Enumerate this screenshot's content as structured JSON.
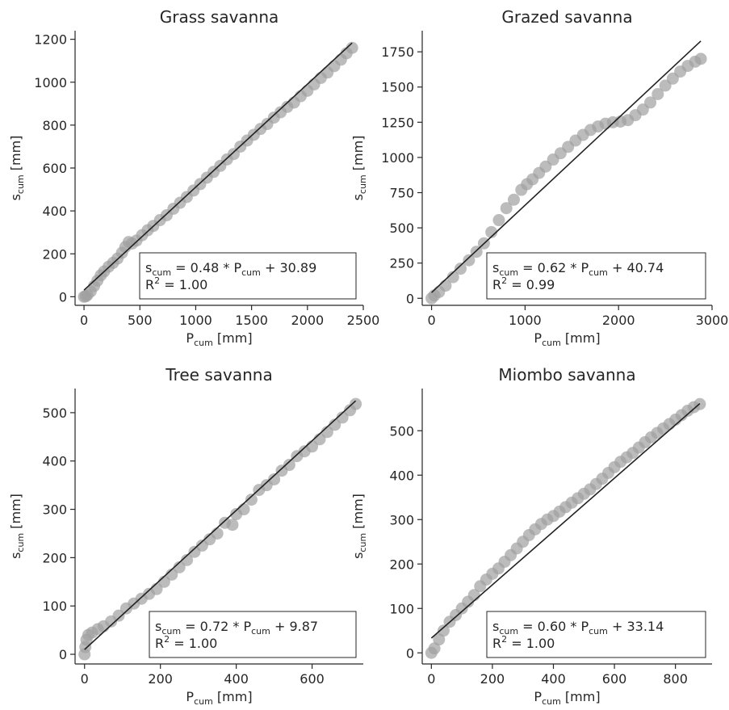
{
  "chart_data": [
    {
      "type": "scatter",
      "title": "Grass savanna",
      "xlabel": {
        "main": "P",
        "sub": "cum",
        "rest": " [mm]"
      },
      "ylabel": {
        "main": "s",
        "sub": "cum",
        "rest": " [mm]"
      },
      "xlim": [
        -80,
        2500
      ],
      "ylim": [
        -40,
        1240
      ],
      "xticks": [
        0,
        500,
        1000,
        1500,
        2000,
        2500
      ],
      "yticks": [
        0,
        200,
        400,
        600,
        800,
        1000,
        1200
      ],
      "equation": {
        "lhs": "s",
        "lhs_sub": "cum",
        "mid": " = 0.48 * P",
        "mid_sub": "cum",
        "rhs": " + 30.89",
        "r2_label": "R",
        "r2_sup": "2",
        "r2_value": " = 1.00"
      },
      "fit": {
        "slope": 0.48,
        "intercept": 30.89,
        "x_range": [
          0,
          2400
        ]
      },
      "series": [
        {
          "x": [
            0,
            15,
            30,
            60,
            90,
            120,
            150,
            180,
            220,
            260,
            300,
            340,
            370,
            400,
            430,
            470,
            520,
            570,
            620,
            680,
            740,
            800,
            860,
            920,
            980,
            1040,
            1100,
            1160,
            1220,
            1280,
            1340,
            1400,
            1460,
            1520,
            1580,
            1640,
            1700,
            1760,
            1820,
            1880,
            1940,
            2000,
            2060,
            2120,
            2180,
            2240,
            2300,
            2350,
            2400
          ],
          "y": [
            0,
            2,
            8,
            25,
            50,
            75,
            100,
            118,
            140,
            158,
            178,
            205,
            232,
            255,
            248,
            262,
            287,
            310,
            330,
            357,
            380,
            410,
            438,
            465,
            495,
            525,
            555,
            582,
            610,
            640,
            665,
            700,
            728,
            755,
            782,
            805,
            835,
            860,
            885,
            905,
            935,
            960,
            990,
            1020,
            1045,
            1075,
            1105,
            1135,
            1160
          ]
        }
      ]
    },
    {
      "type": "scatter",
      "title": "Grazed savanna",
      "xlabel": {
        "main": "P",
        "sub": "cum",
        "rest": " [mm]"
      },
      "ylabel": {
        "main": "s",
        "sub": "cum",
        "rest": " [mm]"
      },
      "xlim": [
        -100,
        3000
      ],
      "ylim": [
        -50,
        1900
      ],
      "xticks": [
        0,
        1000,
        2000,
        3000
      ],
      "yticks": [
        0,
        250,
        500,
        750,
        1000,
        1250,
        1500,
        1750
      ],
      "equation": {
        "lhs": "s",
        "lhs_sub": "cum",
        "mid": " = 0.62 * P",
        "mid_sub": "cum",
        "rhs": " + 40.74",
        "r2_label": "R",
        "r2_sup": "2",
        "r2_value": " = 0.99"
      },
      "fit": {
        "slope": 0.62,
        "intercept": 40.74,
        "x_range": [
          0,
          2880
        ]
      },
      "series": [
        {
          "x": [
            0,
            30,
            80,
            150,
            230,
            310,
            400,
            480,
            560,
            640,
            720,
            800,
            880,
            960,
            1020,
            1080,
            1150,
            1220,
            1300,
            1380,
            1460,
            1540,
            1620,
            1700,
            1780,
            1860,
            1940,
            2020,
            2100,
            2180,
            2260,
            2340,
            2420,
            2500,
            2580,
            2660,
            2740,
            2820,
            2880
          ],
          "y": [
            0,
            20,
            45,
            90,
            150,
            210,
            270,
            330,
            390,
            470,
            555,
            640,
            700,
            770,
            810,
            845,
            890,
            935,
            985,
            1030,
            1075,
            1120,
            1160,
            1195,
            1220,
            1240,
            1250,
            1255,
            1265,
            1300,
            1340,
            1390,
            1450,
            1510,
            1560,
            1610,
            1650,
            1680,
            1700
          ]
        }
      ]
    },
    {
      "type": "scatter",
      "title": "Tree savanna",
      "xlabel": {
        "main": "P",
        "sub": "cum",
        "rest": " [mm]"
      },
      "ylabel": {
        "main": "s",
        "sub": "cum",
        "rest": " [mm]"
      },
      "xlim": [
        -25,
        735
      ],
      "ylim": [
        -20,
        550
      ],
      "xticks": [
        0,
        200,
        400,
        600
      ],
      "yticks": [
        0,
        100,
        200,
        300,
        400,
        500
      ],
      "equation": {
        "lhs": "s",
        "lhs_sub": "cum",
        "mid": " = 0.72 * P",
        "mid_sub": "cum",
        "rhs": " + 9.87",
        "r2_label": "R",
        "r2_sup": "2",
        "r2_value": " = 1.00"
      },
      "fit": {
        "slope": 0.72,
        "intercept": 9.87,
        "x_range": [
          0,
          715
        ]
      },
      "series": [
        {
          "x": [
            0,
            2,
            5,
            10,
            20,
            35,
            50,
            70,
            90,
            110,
            130,
            150,
            170,
            190,
            210,
            230,
            250,
            270,
            290,
            310,
            330,
            350,
            370,
            390,
            400,
            420,
            440,
            460,
            480,
            500,
            520,
            540,
            560,
            580,
            600,
            620,
            640,
            660,
            680,
            700,
            715
          ],
          "y": [
            0,
            15,
            30,
            40,
            45,
            52,
            58,
            68,
            80,
            95,
            105,
            115,
            125,
            135,
            150,
            165,
            180,
            195,
            212,
            225,
            238,
            250,
            272,
            268,
            290,
            300,
            320,
            340,
            350,
            362,
            380,
            392,
            410,
            420,
            430,
            445,
            460,
            475,
            490,
            505,
            518
          ]
        }
      ]
    },
    {
      "type": "scatter",
      "title": "Miombo savanna",
      "xlabel": {
        "main": "P",
        "sub": "cum",
        "rest": " [mm]"
      },
      "ylabel": {
        "main": "s",
        "sub": "cum",
        "rest": " [mm]"
      },
      "xlim": [
        -30,
        920
      ],
      "ylim": [
        -25,
        595
      ],
      "xticks": [
        0,
        200,
        400,
        600,
        800
      ],
      "yticks": [
        0,
        100,
        200,
        300,
        400,
        500
      ],
      "equation": {
        "lhs": "s",
        "lhs_sub": "cum",
        "mid": " = 0.60 * P",
        "mid_sub": "cum",
        "rhs": " + 33.14",
        "r2_label": "R",
        "r2_sup": "2",
        "r2_value": " = 1.00"
      },
      "fit": {
        "slope": 0.6,
        "intercept": 33.14,
        "x_range": [
          0,
          880
        ]
      },
      "series": [
        {
          "x": [
            0,
            10,
            25,
            40,
            60,
            80,
            100,
            120,
            140,
            160,
            180,
            200,
            220,
            240,
            260,
            280,
            300,
            320,
            340,
            360,
            380,
            400,
            420,
            440,
            460,
            480,
            500,
            520,
            540,
            560,
            580,
            600,
            620,
            640,
            660,
            680,
            700,
            720,
            740,
            760,
            780,
            800,
            820,
            840,
            860,
            880
          ],
          "y": [
            0,
            10,
            30,
            50,
            70,
            85,
            100,
            115,
            130,
            150,
            165,
            178,
            190,
            205,
            220,
            235,
            250,
            265,
            278,
            290,
            300,
            308,
            318,
            328,
            338,
            348,
            358,
            368,
            380,
            392,
            405,
            418,
            430,
            440,
            450,
            462,
            474,
            485,
            495,
            505,
            515,
            525,
            535,
            545,
            553,
            560
          ]
        }
      ]
    }
  ]
}
